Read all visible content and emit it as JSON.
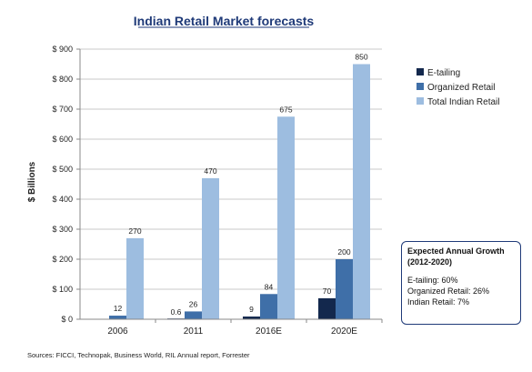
{
  "chart_data": {
    "type": "bar",
    "title": "Indian Retail Market forecasts",
    "ylabel": "$ Billions",
    "xlabel": "",
    "categories": [
      "2006",
      "2011",
      "2016E",
      "2020E"
    ],
    "series": [
      {
        "name": "E-tailing",
        "color": "#13284d",
        "values": [
          null,
          0.6,
          9,
          70
        ],
        "labels": [
          "",
          "0.6",
          "9",
          "70"
        ]
      },
      {
        "name": "Organized Retail",
        "color": "#3f6fa8",
        "values": [
          12,
          26,
          84,
          200
        ],
        "labels": [
          "12",
          "26",
          "84",
          "200"
        ]
      },
      {
        "name": "Total Indian Retail",
        "color": "#9dbde0",
        "values": [
          270,
          470,
          675,
          850
        ],
        "labels": [
          "270",
          "470",
          "675",
          "850"
        ]
      }
    ],
    "ylim": [
      0,
      900
    ],
    "yticks": [
      0,
      100,
      200,
      300,
      400,
      500,
      600,
      700,
      800,
      900
    ],
    "ytick_labels": [
      "$ 0",
      "$ 100",
      "$ 200",
      "$ 300",
      "$ 400",
      "$ 500",
      "$ 600",
      "$ 700",
      "$ 800",
      "$ 900"
    ],
    "grid": true,
    "legend_position": "right"
  },
  "growth_box": {
    "title": "Expected Annual Growth",
    "subtitle": "(2012-2020)",
    "lines": [
      "E-tailing: 60%",
      "Organized Retail: 26%",
      "Indian Retail: 7%"
    ]
  },
  "sources": "Sources: FICCI, Technopak, Business World, RIL Annual report, Forrester"
}
